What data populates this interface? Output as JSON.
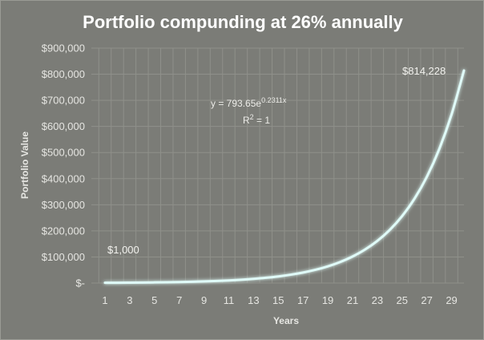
{
  "chart_data": {
    "type": "line",
    "title": "Portfolio compunding at 26% annually",
    "xlabel": "Years",
    "ylabel": "Portfolio Value",
    "xlim": [
      1,
      30
    ],
    "ylim": [
      0,
      900000
    ],
    "x_ticks": [
      "1",
      "3",
      "5",
      "7",
      "9",
      "11",
      "13",
      "15",
      "17",
      "19",
      "21",
      "23",
      "25",
      "27",
      "29"
    ],
    "y_ticks": [
      "$-",
      "$100,000",
      "$200,000",
      "$300,000",
      "$400,000",
      "$500,000",
      "$600,000",
      "$700,000",
      "$800,000",
      "$900,000"
    ],
    "grid": true,
    "growth_rate": 0.26,
    "start_value": 1000,
    "end_value": 814228,
    "series": [
      {
        "x": [
          1,
          2,
          3,
          4,
          5,
          6,
          7,
          8,
          9,
          10,
          11,
          12,
          13,
          14,
          15,
          16,
          17,
          18,
          19,
          20,
          21,
          22,
          23,
          24,
          25,
          26,
          27,
          28,
          29,
          30
        ],
        "values": [
          1000,
          1260,
          1588,
          2000,
          2520,
          3176,
          4002,
          5042,
          6353,
          8005,
          10086,
          12708,
          16012,
          20175,
          25421,
          32030,
          40358,
          50851,
          64072,
          80731,
          101721,
          128168,
          161492,
          203480,
          256385,
          323045,
          407037,
          512867,
          646212,
          814228
        ],
        "color": "#e0fbf8"
      }
    ],
    "annotations": {
      "start_label": "$1,000",
      "end_label": "$814,228",
      "trendline_equation_base": "y = 793.65e",
      "trendline_equation_exp": "0.2311x",
      "r_squared_base": "R",
      "r_squared_sup": "2",
      "r_squared_rest": " = 1"
    }
  }
}
